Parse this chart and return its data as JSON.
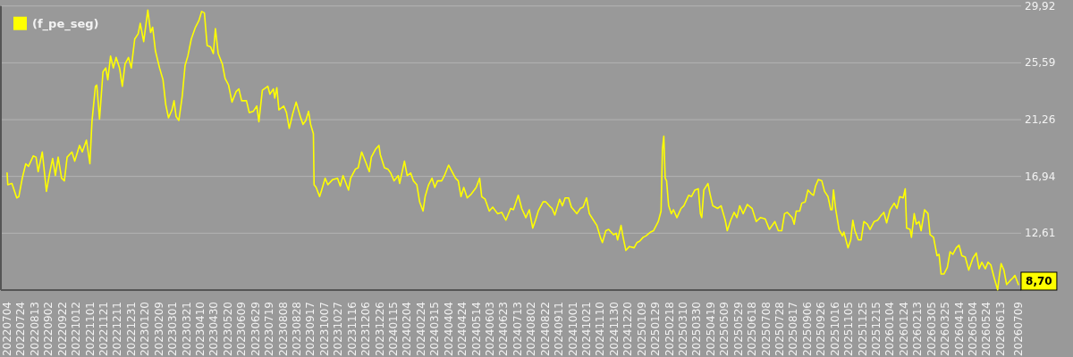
{
  "chart_data": {
    "type": "line",
    "x": [
      "2022-07-04",
      "2022-07-05",
      "2022-07-11",
      "2022-07-18",
      "2022-07-21",
      "2022-07-26",
      "2022-07-31",
      "2022-08-04",
      "2022-08-11",
      "2022-08-15",
      "2022-08-18",
      "2022-08-24",
      "2022-08-30",
      "2022-09-03",
      "2022-09-08",
      "2022-09-12",
      "2022-09-16",
      "2022-09-21",
      "2022-09-25",
      "2022-09-29",
      "2022-10-06",
      "2022-10-10",
      "2022-10-17",
      "2022-10-21",
      "2022-10-27",
      "2022-11-01",
      "2022-11-04",
      "2022-11-09",
      "2022-11-11",
      "2022-11-15",
      "2022-11-20",
      "2022-11-24",
      "2022-11-27",
      "2022-12-01",
      "2022-12-05",
      "2022-12-09",
      "2022-12-14",
      "2022-12-18",
      "2022-12-22",
      "2022-12-27",
      "2022-12-31",
      "2023-01-05",
      "2023-01-10",
      "2023-01-13",
      "2023-01-18",
      "2023-01-24",
      "2023-01-28",
      "2023-01-31",
      "2023-02-04",
      "2023-02-10",
      "2023-02-15",
      "2023-02-19",
      "2023-02-23",
      "2023-02-28",
      "2023-03-03",
      "2023-03-06",
      "2023-03-10",
      "2023-03-15",
      "2023-03-19",
      "2023-03-23",
      "2023-03-28",
      "2023-04-03",
      "2023-04-08",
      "2023-04-12",
      "2023-04-16",
      "2023-04-20",
      "2023-04-25",
      "2023-04-29",
      "2023-05-02",
      "2023-05-06",
      "2023-05-12",
      "2023-05-16",
      "2023-05-21",
      "2023-05-26",
      "2023-06-01",
      "2023-06-05",
      "2023-06-09",
      "2023-06-16",
      "2023-06-20",
      "2023-06-26",
      "2023-07-01",
      "2023-07-04",
      "2023-07-09",
      "2023-07-17",
      "2023-07-20",
      "2023-07-25",
      "2023-07-27",
      "2023-07-30",
      "2023-08-02",
      "2023-08-09",
      "2023-08-13",
      "2023-08-17",
      "2023-08-22",
      "2023-08-27",
      "2023-09-02",
      "2023-09-06",
      "2023-09-10",
      "2023-09-14",
      "2023-09-17",
      "2023-09-21",
      "2023-09-22",
      "2023-09-25",
      "2023-09-30",
      "2023-10-03",
      "2023-10-08",
      "2023-10-12",
      "2023-10-19",
      "2023-10-26",
      "2023-10-30",
      "2023-11-03",
      "2023-11-11",
      "2023-11-14",
      "2023-11-21",
      "2023-11-25",
      "2023-11-30",
      "2023-12-06",
      "2023-12-11",
      "2023-12-14",
      "2023-12-20",
      "2023-12-25",
      "2023-12-27",
      "2024-01-02",
      "2024-01-07",
      "2024-01-11",
      "2024-01-16",
      "2024-01-22",
      "2024-01-24",
      "2024-01-31",
      "2024-02-04",
      "2024-02-09",
      "2024-02-13",
      "2024-02-18",
      "2024-02-22",
      "2024-02-27",
      "2024-03-01",
      "2024-03-06",
      "2024-03-11",
      "2024-03-15",
      "2024-03-19",
      "2024-03-25",
      "2024-03-29",
      "2024-04-04",
      "2024-04-07",
      "2024-04-14",
      "2024-04-18",
      "2024-04-22",
      "2024-04-26",
      "2024-05-01",
      "2024-05-07",
      "2024-05-14",
      "2024-05-19",
      "2024-05-22",
      "2024-05-27",
      "2024-06-02",
      "2024-06-07",
      "2024-06-14",
      "2024-06-20",
      "2024-06-26",
      "2024-07-03",
      "2024-07-07",
      "2024-07-14",
      "2024-07-19",
      "2024-07-25",
      "2024-07-30",
      "2024-08-04",
      "2024-08-08",
      "2024-08-12",
      "2024-08-19",
      "2024-08-23",
      "2024-08-28",
      "2024-09-01",
      "2024-09-05",
      "2024-09-12",
      "2024-09-16",
      "2024-09-20",
      "2024-09-25",
      "2024-09-29",
      "2024-10-07",
      "2024-10-12",
      "2024-10-16",
      "2024-10-21",
      "2024-10-25",
      "2024-10-31",
      "2024-11-05",
      "2024-11-10",
      "2024-11-13",
      "2024-11-18",
      "2024-11-22",
      "2024-11-29",
      "2024-12-03",
      "2024-12-05",
      "2024-12-10",
      "2024-12-13",
      "2024-12-17",
      "2024-12-22",
      "2024-12-29",
      "2025-01-02",
      "2025-01-06",
      "2025-01-11",
      "2025-01-15",
      "2025-01-22",
      "2025-01-26",
      "2025-01-30",
      "2025-02-02",
      "2025-02-06",
      "2025-02-08",
      "2025-02-10",
      "2025-02-12",
      "2025-02-14",
      "2025-02-17",
      "2025-02-21",
      "2025-02-24",
      "2025-03-01",
      "2025-03-07",
      "2025-03-11",
      "2025-03-18",
      "2025-03-22",
      "2025-03-27",
      "2025-04-01",
      "2025-04-04",
      "2025-04-06",
      "2025-04-09",
      "2025-04-15",
      "2025-04-18",
      "2025-04-22",
      "2025-04-29",
      "2025-05-04",
      "2025-05-10",
      "2025-05-13",
      "2025-05-18",
      "2025-05-23",
      "2025-05-27",
      "2025-05-31",
      "2025-06-05",
      "2025-06-11",
      "2025-06-18",
      "2025-06-24",
      "2025-06-30",
      "2025-07-07",
      "2025-07-13",
      "2025-07-21",
      "2025-07-26",
      "2025-07-31",
      "2025-08-04",
      "2025-08-08",
      "2025-08-15",
      "2025-08-18",
      "2025-08-21",
      "2025-08-26",
      "2025-08-29",
      "2025-09-03",
      "2025-09-07",
      "2025-09-12",
      "2025-09-15",
      "2025-09-18",
      "2025-09-22",
      "2025-09-27",
      "2025-10-01",
      "2025-10-06",
      "2025-10-10",
      "2025-10-12",
      "2025-10-14",
      "2025-10-17",
      "2025-10-22",
      "2025-10-27",
      "2025-10-29",
      "2025-11-04",
      "2025-11-08",
      "2025-11-11",
      "2025-11-14",
      "2025-11-19",
      "2025-11-23",
      "2025-11-27",
      "2025-12-02",
      "2025-12-06",
      "2025-12-12",
      "2025-12-17",
      "2025-12-21",
      "2025-12-26",
      "2025-12-30",
      "2026-01-04",
      "2026-01-10",
      "2026-01-14",
      "2026-01-18",
      "2026-01-23",
      "2026-01-26",
      "2026-01-28",
      "2026-02-02",
      "2026-02-04",
      "2026-02-08",
      "2026-02-11",
      "2026-02-15",
      "2026-02-18",
      "2026-02-23",
      "2026-02-28",
      "2026-03-03",
      "2026-03-08",
      "2026-03-13",
      "2026-03-16",
      "2026-03-19",
      "2026-03-23",
      "2026-03-28",
      "2026-04-01",
      "2026-04-05",
      "2026-04-10",
      "2026-04-14",
      "2026-04-18",
      "2026-04-23",
      "2026-04-28",
      "2026-05-04",
      "2026-05-09",
      "2026-05-13",
      "2026-05-17",
      "2026-05-22",
      "2026-05-26",
      "2026-05-30",
      "2026-06-04",
      "2026-06-09",
      "2026-06-11",
      "2026-06-14",
      "2026-06-18",
      "2026-06-22",
      "2026-06-27",
      "2026-07-01",
      "2026-07-04",
      "2026-07-09"
    ],
    "series": [
      {
        "name": "(f_pe_seg)",
        "color": "#ffff00",
        "values": [
          17.2,
          16.3,
          16.4,
          15.3,
          15.4,
          16.8,
          17.9,
          17.7,
          18.5,
          18.4,
          17.3,
          18.8,
          15.8,
          17.0,
          18.3,
          17.0,
          18.4,
          16.8,
          16.6,
          18.4,
          18.8,
          18.1,
          19.3,
          18.8,
          19.7,
          17.9,
          21.1,
          23.8,
          23.9,
          21.3,
          24.9,
          25.2,
          24.3,
          26.1,
          25.2,
          26.0,
          25.2,
          23.8,
          25.5,
          26.0,
          25.2,
          27.4,
          27.8,
          28.6,
          27.2,
          29.6,
          27.9,
          28.3,
          26.5,
          25.2,
          24.3,
          22.4,
          21.4,
          22.0,
          22.7,
          21.5,
          21.2,
          23.1,
          25.4,
          26.1,
          27.4,
          28.3,
          28.8,
          29.5,
          29.4,
          26.9,
          26.8,
          26.3,
          28.2,
          26.3,
          25.5,
          24.4,
          23.9,
          22.6,
          23.4,
          23.6,
          22.7,
          22.7,
          21.8,
          21.9,
          22.3,
          21.1,
          23.5,
          23.8,
          23.2,
          23.6,
          22.9,
          23.7,
          22.0,
          22.3,
          21.8,
          20.6,
          21.7,
          22.6,
          21.5,
          20.9,
          21.2,
          21.9,
          20.9,
          20.2,
          16.3,
          16.1,
          15.4,
          15.9,
          16.8,
          16.3,
          16.7,
          16.8,
          16.2,
          17.0,
          15.9,
          16.8,
          17.5,
          17.6,
          18.8,
          18.0,
          17.3,
          18.4,
          19.0,
          19.3,
          18.6,
          17.6,
          17.5,
          17.2,
          16.6,
          17.0,
          16.4,
          18.1,
          17.0,
          17.2,
          16.6,
          16.3,
          15.0,
          14.3,
          15.4,
          16.3,
          16.8,
          16.1,
          16.6,
          16.6,
          17.0,
          17.8,
          17.5,
          16.8,
          16.6,
          15.4,
          16.1,
          15.3,
          15.6,
          16.1,
          16.8,
          15.4,
          15.2,
          14.3,
          14.6,
          14.1,
          14.2,
          13.6,
          14.5,
          14.4,
          15.5,
          14.5,
          13.8,
          14.4,
          13.0,
          13.6,
          14.3,
          15.0,
          15.0,
          14.7,
          14.5,
          14.0,
          15.2,
          14.7,
          15.3,
          15.3,
          14.6,
          14.1,
          14.5,
          14.6,
          15.3,
          14.1,
          13.6,
          13.2,
          12.3,
          11.9,
          12.8,
          12.9,
          12.5,
          12.6,
          12.1,
          13.2,
          12.3,
          11.3,
          11.6,
          11.5,
          11.9,
          12.0,
          12.3,
          12.4,
          12.7,
          12.8,
          13.2,
          13.5,
          14.3,
          19.0,
          20.0,
          16.8,
          16.6,
          14.7,
          14.1,
          14.4,
          13.8,
          14.5,
          14.7,
          15.5,
          15.4,
          15.9,
          16.0,
          14.1,
          13.8,
          15.9,
          16.4,
          15.6,
          14.7,
          14.5,
          14.7,
          13.6,
          12.8,
          13.6,
          14.2,
          13.8,
          14.7,
          14.1,
          14.8,
          14.5,
          13.5,
          13.8,
          13.7,
          12.9,
          13.5,
          12.8,
          12.8,
          14.1,
          14.2,
          13.8,
          13.3,
          14.3,
          14.3,
          14.9,
          15.0,
          15.9,
          15.6,
          15.5,
          16.2,
          16.7,
          16.6,
          15.8,
          15.4,
          14.4,
          14.4,
          15.9,
          14.5,
          12.9,
          12.4,
          12.7,
          11.5,
          12.1,
          13.6,
          12.8,
          12.1,
          12.1,
          13.5,
          13.3,
          12.9,
          13.5,
          13.6,
          13.9,
          14.2,
          13.4,
          14.4,
          14.9,
          14.5,
          15.4,
          15.3,
          16.0,
          13.0,
          12.9,
          12.3,
          14.1,
          13.3,
          13.5,
          12.8,
          14.4,
          14.1,
          12.5,
          12.3,
          10.9,
          11.0,
          9.5,
          9.5,
          10.0,
          11.2,
          11.0,
          11.5,
          11.7,
          10.9,
          10.8,
          9.8,
          10.7,
          11.1,
          9.9,
          10.4,
          9.9,
          10.4,
          10.2,
          9.2,
          8.3,
          9.2,
          10.3,
          9.8,
          8.7,
          9.0,
          9.2,
          9.4,
          8.7
        ]
      }
    ],
    "xlim": [
      "2022-06-25",
      "2026-07-13"
    ],
    "xticks": [
      {
        "value": "2022-07-04",
        "label": "20220704"
      },
      {
        "value": "2022-07-24",
        "label": "20220724"
      },
      {
        "value": "2022-08-13",
        "label": "20220813"
      },
      {
        "value": "2022-09-02",
        "label": "20220902"
      },
      {
        "value": "2022-09-22",
        "label": "20220922"
      },
      {
        "value": "2022-10-12",
        "label": "20221012"
      },
      {
        "value": "2022-11-01",
        "label": "20221101"
      },
      {
        "value": "2022-11-21",
        "label": "20221121"
      },
      {
        "value": "2022-12-11",
        "label": "20221211"
      },
      {
        "value": "2022-12-31",
        "label": "20221231"
      },
      {
        "value": "2023-01-20",
        "label": "20230120"
      },
      {
        "value": "2023-02-09",
        "label": "20230209"
      },
      {
        "value": "2023-03-01",
        "label": "20230301"
      },
      {
        "value": "2023-03-21",
        "label": "20230321"
      },
      {
        "value": "2023-04-10",
        "label": "20230410"
      },
      {
        "value": "2023-04-30",
        "label": "20230430"
      },
      {
        "value": "2023-05-20",
        "label": "20230520"
      },
      {
        "value": "2023-06-09",
        "label": "20230609"
      },
      {
        "value": "2023-06-29",
        "label": "20230629"
      },
      {
        "value": "2023-07-19",
        "label": "20230719"
      },
      {
        "value": "2023-08-08",
        "label": "20230808"
      },
      {
        "value": "2023-08-28",
        "label": "20230828"
      },
      {
        "value": "2023-09-17",
        "label": "20230917"
      },
      {
        "value": "2023-10-07",
        "label": "20231007"
      },
      {
        "value": "2023-10-27",
        "label": "20231027"
      },
      {
        "value": "2023-11-16",
        "label": "20231116"
      },
      {
        "value": "2023-12-06",
        "label": "20231206"
      },
      {
        "value": "2023-12-26",
        "label": "20231226"
      },
      {
        "value": "2024-01-15",
        "label": "20240115"
      },
      {
        "value": "2024-02-04",
        "label": "20240204"
      },
      {
        "value": "2024-02-24",
        "label": "20240224"
      },
      {
        "value": "2024-03-15",
        "label": "20240315"
      },
      {
        "value": "2024-04-04",
        "label": "20240404"
      },
      {
        "value": "2024-04-24",
        "label": "20240424"
      },
      {
        "value": "2024-05-14",
        "label": "20240514"
      },
      {
        "value": "2024-06-03",
        "label": "20240603"
      },
      {
        "value": "2024-06-23",
        "label": "20240623"
      },
      {
        "value": "2024-07-13",
        "label": "20240713"
      },
      {
        "value": "2024-08-02",
        "label": "20240802"
      },
      {
        "value": "2024-08-22",
        "label": "20240822"
      },
      {
        "value": "2024-09-11",
        "label": "20240911"
      },
      {
        "value": "2024-10-01",
        "label": "20241001"
      },
      {
        "value": "2024-10-21",
        "label": "20241021"
      },
      {
        "value": "2024-11-10",
        "label": "20241110"
      },
      {
        "value": "2024-11-30",
        "label": "20241130"
      },
      {
        "value": "2024-12-20",
        "label": "20241220"
      },
      {
        "value": "2025-01-09",
        "label": "20250109"
      },
      {
        "value": "2025-01-29",
        "label": "20250129"
      },
      {
        "value": "2025-02-18",
        "label": "20250218"
      },
      {
        "value": "2025-03-10",
        "label": "20250310"
      },
      {
        "value": "2025-03-30",
        "label": "20250330"
      },
      {
        "value": "2025-04-19",
        "label": "20250419"
      },
      {
        "value": "2025-05-09",
        "label": "20250509"
      },
      {
        "value": "2025-05-29",
        "label": "20250529"
      },
      {
        "value": "2025-06-18",
        "label": "20250618"
      },
      {
        "value": "2025-07-08",
        "label": "20250708"
      },
      {
        "value": "2025-07-28",
        "label": "20250728"
      },
      {
        "value": "2025-08-17",
        "label": "20250817"
      },
      {
        "value": "2025-09-06",
        "label": "20250906"
      },
      {
        "value": "2025-09-26",
        "label": "20250926"
      },
      {
        "value": "2025-10-16",
        "label": "20251016"
      },
      {
        "value": "2025-11-05",
        "label": "20251105"
      },
      {
        "value": "2025-11-25",
        "label": "20251125"
      },
      {
        "value": "2025-12-15",
        "label": "20251215"
      },
      {
        "value": "2026-01-04",
        "label": "20260104"
      },
      {
        "value": "2026-01-24",
        "label": "20260124"
      },
      {
        "value": "2026-02-13",
        "label": "20260213"
      },
      {
        "value": "2026-03-05",
        "label": "20260305"
      },
      {
        "value": "2026-03-25",
        "label": "20260325"
      },
      {
        "value": "2026-04-14",
        "label": "20260414"
      },
      {
        "value": "2026-05-04",
        "label": "20260504"
      },
      {
        "value": "2026-05-24",
        "label": "20260524"
      },
      {
        "value": "2026-06-13",
        "label": "20260613"
      },
      {
        "value": "2026-07-09",
        "label": "20260709"
      }
    ],
    "ylim": [
      8.28,
      29.92
    ],
    "yticks": [
      {
        "value": 12.61,
        "label": "12,61"
      },
      {
        "value": 16.94,
        "label": "16,94"
      },
      {
        "value": 21.26,
        "label": "21,26"
      },
      {
        "value": 25.59,
        "label": "25,59"
      },
      {
        "value": 29.92,
        "label": "29,92"
      }
    ],
    "grid": "y",
    "legend": "top left",
    "annotations": [
      {
        "text": "8,70",
        "x": "2026-07-09",
        "y": 8.7
      }
    ]
  }
}
